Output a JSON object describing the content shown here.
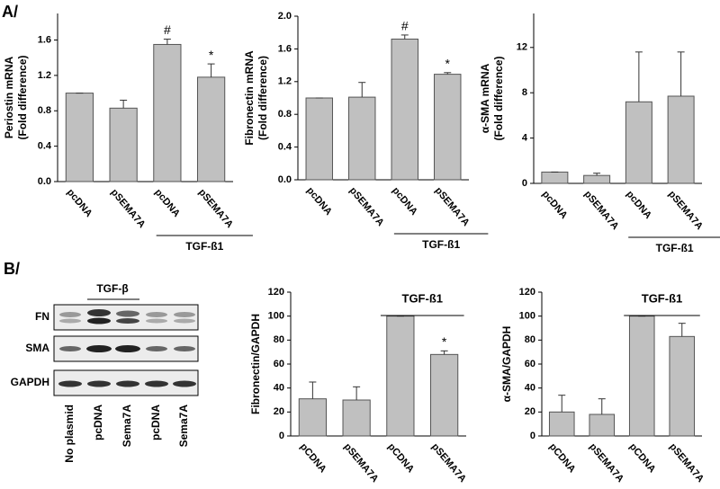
{
  "panel_labels": [
    "A/",
    "B/"
  ],
  "chart_data": [
    {
      "type": "bar",
      "y_label": [
        "Periostin mRNA",
        "(Fold difference)"
      ],
      "categories": [
        "pcDNA",
        "pSEMA7A",
        "pcDNA",
        "pSEMA7A"
      ],
      "values": [
        1.0,
        0.83,
        1.55,
        1.18
      ],
      "errors": [
        0,
        0.09,
        0.06,
        0.15
      ],
      "markers": [
        null,
        null,
        "#",
        "*"
      ],
      "color": "#c0c0c0",
      "ylim": [
        0,
        1.9
      ],
      "yticks": [
        {
          "value": 0,
          "label": "0.0"
        },
        0.4,
        0.8,
        1.2,
        1.6
      ],
      "group_label": "TGF-ß1",
      "group_position": "bottom"
    },
    {
      "type": "bar",
      "y_label": [
        "Fibronectin mRNA",
        "(Fold difference)"
      ],
      "categories": [
        "pcDNA",
        "pSEMA7A",
        "pcDNA",
        "pSEMA7A"
      ],
      "values": [
        1.0,
        1.01,
        1.72,
        1.29
      ],
      "errors": [
        0,
        0.18,
        0.05,
        0.02
      ],
      "markers": [
        null,
        null,
        "#",
        "*"
      ],
      "color": "#c0c0c0",
      "ylim": [
        0,
        2.0
      ],
      "yticks": [
        {
          "value": 0,
          "label": "0.0"
        },
        0.4,
        0.8,
        1.2,
        1.6,
        {
          "value": 2,
          "label": "2.0"
        }
      ],
      "group_label": "TGF-ß1",
      "group_position": "bottom"
    },
    {
      "type": "bar",
      "y_label": [
        "α-SMA mRNA",
        "(Fold difference)"
      ],
      "categories": [
        "pcDNA",
        "pSEMA7A",
        "pcDNA",
        "pSEMA7A"
      ],
      "values": [
        1.0,
        0.7,
        7.2,
        7.7
      ],
      "errors": [
        0,
        0.2,
        4.4,
        3.9
      ],
      "markers": [
        null,
        null,
        null,
        null
      ],
      "color": "#c0c0c0",
      "ylim": [
        0,
        15
      ],
      "yticks": [
        0,
        4,
        8,
        12
      ],
      "group_label": "TGF-ß1",
      "group_position": "bottom"
    },
    {
      "type": "bar",
      "y_label": [
        "Fibronectin/GAPDH"
      ],
      "categories": [
        "pCDNA",
        "pSEMA7A",
        "pCDNA",
        "pSEMA7A"
      ],
      "values": [
        31,
        30,
        100,
        68
      ],
      "errors": [
        14,
        11,
        0,
        3
      ],
      "markers": [
        null,
        null,
        null,
        "*"
      ],
      "color": "#c0c0c0",
      "ylim": [
        0,
        120
      ],
      "yticks": [
        0,
        20,
        40,
        60,
        80,
        100,
        120
      ],
      "group_label": "TGF-ß1",
      "group_position": "top"
    },
    {
      "type": "bar",
      "y_label": [
        "α-SMA/GAPDH"
      ],
      "categories": [
        "pCDNA",
        "pSEMA7A",
        "pCDNA",
        "pSEMA7A"
      ],
      "values": [
        20,
        18,
        100,
        83
      ],
      "errors": [
        14,
        13,
        0,
        11
      ],
      "markers": [
        null,
        null,
        null,
        null
      ],
      "color": "#c0c0c0",
      "ylim": [
        0,
        120
      ],
      "yticks": [
        0,
        20,
        40,
        60,
        80,
        100,
        120
      ],
      "group_label": "TGF-ß1",
      "group_position": "top"
    }
  ],
  "blot": {
    "group_label": "TGF-β",
    "rows": [
      "FN",
      "SMA",
      "GAPDH"
    ],
    "lanes": [
      "No plasmid",
      "pcDNA",
      "Sema7A",
      "pcDNA",
      "Sema7A"
    ]
  }
}
